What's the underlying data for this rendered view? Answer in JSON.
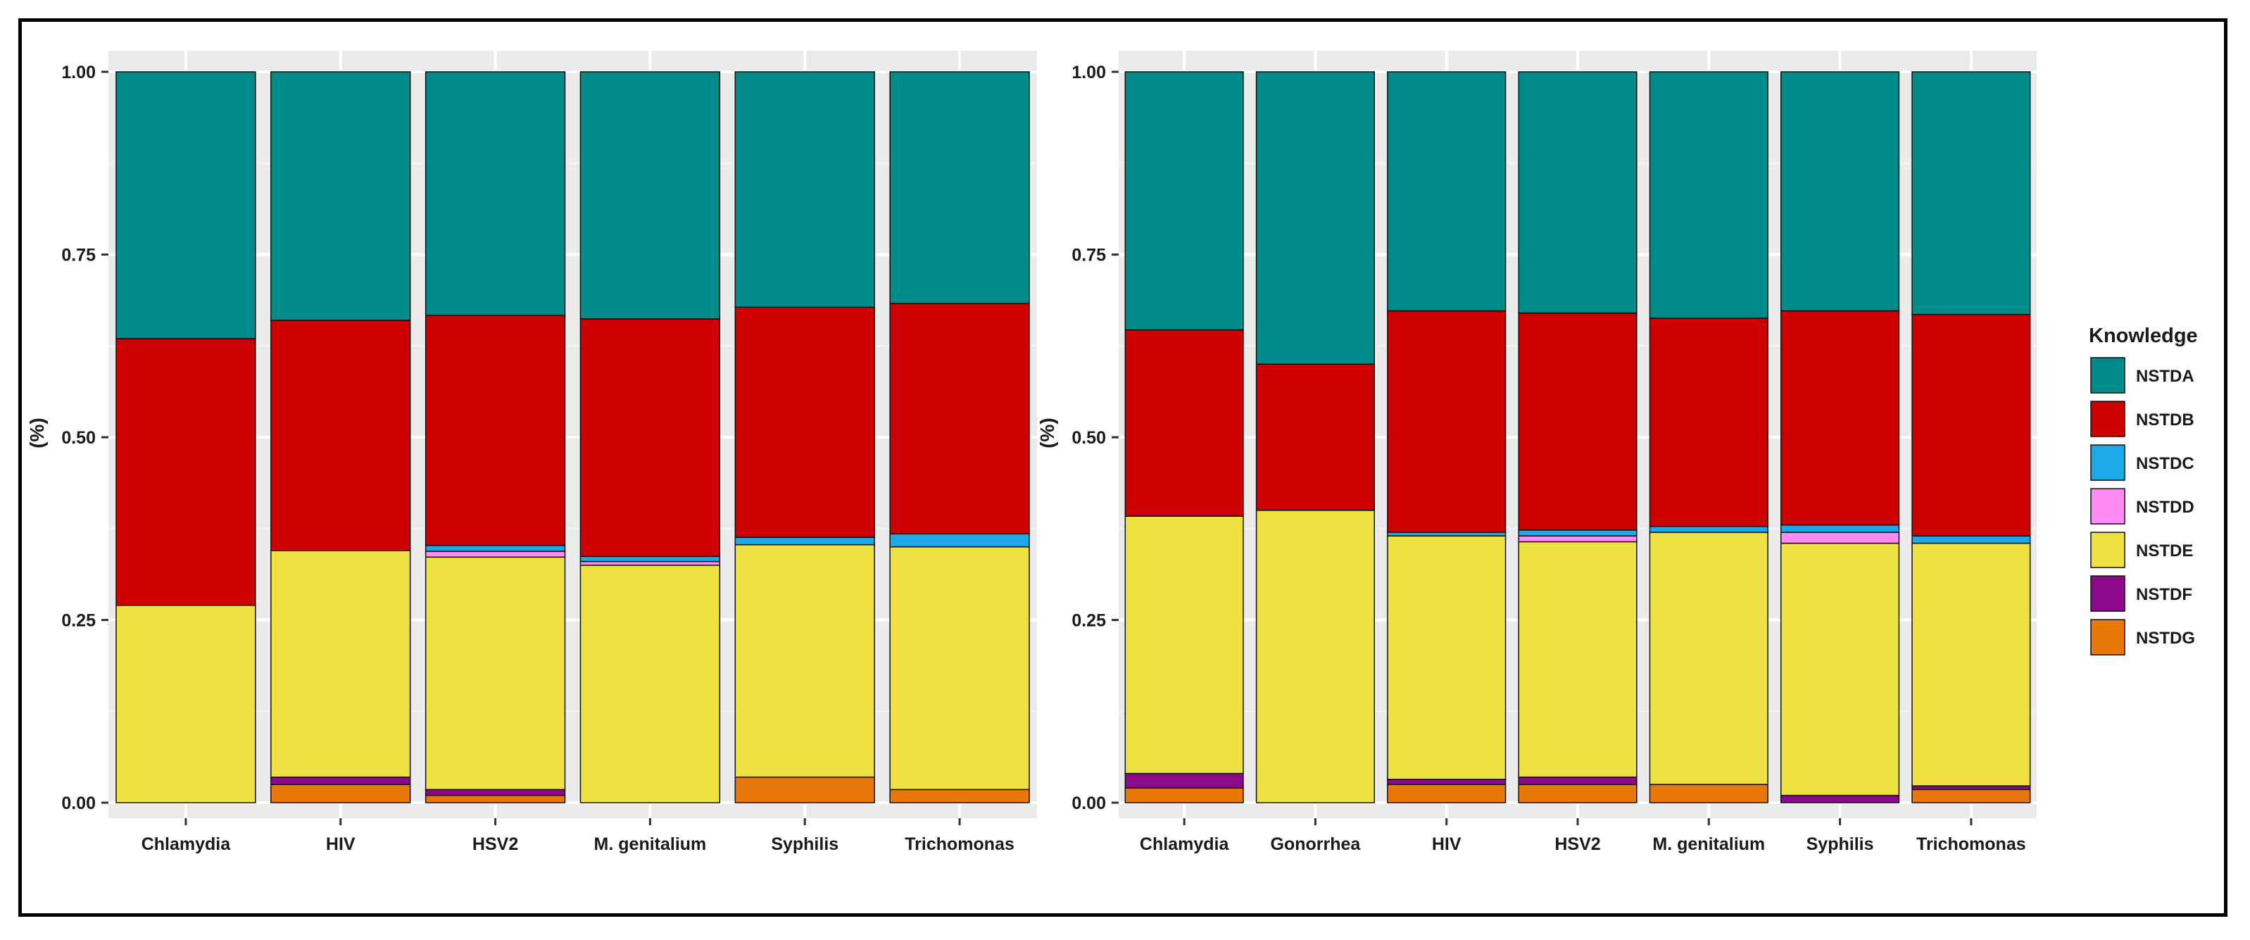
{
  "colors": {
    "panel_bg": "#ebebeb",
    "grid_major": "#ffffff",
    "grid_minor": "#f4f4f4",
    "bar_edge": "#111111",
    "text": "#1a1a1a"
  },
  "legend": {
    "title": "Knowledge",
    "placement": "right",
    "items": [
      {
        "label": "NSTDA",
        "color": "#008B8B"
      },
      {
        "label": "NSTDB",
        "color": "#CC0000"
      },
      {
        "label": "NSTDC",
        "color": "#1BA9E8"
      },
      {
        "label": "NSTDD",
        "color": "#FF8CF5"
      },
      {
        "label": "NSTDE",
        "color": "#EEE242"
      },
      {
        "label": "NSTDF",
        "color": "#8B0A8B"
      },
      {
        "label": "NSTDG",
        "color": "#E8780A"
      }
    ]
  },
  "chart_data": [
    {
      "type": "bar",
      "stacked": true,
      "ylabel": "(%)",
      "xlabel": "",
      "ylim": [
        0,
        1
      ],
      "yticks": [
        "0.00",
        "0.25",
        "0.50",
        "0.75",
        "1.00"
      ],
      "grid": true,
      "categories": [
        "Chlamydia",
        "HIV",
        "HSV2",
        "M. genitalium",
        "Syphilis",
        "Trichomonas"
      ],
      "series": [
        {
          "name": "NSTDG",
          "values": [
            0.0,
            0.025,
            0.01,
            0.0,
            0.035,
            0.018
          ]
        },
        {
          "name": "NSTDF",
          "values": [
            0.0,
            0.01,
            0.008,
            0.0,
            0.0,
            0.0
          ]
        },
        {
          "name": "NSTDE",
          "values": [
            0.27,
            0.31,
            0.318,
            0.325,
            0.318,
            0.332
          ]
        },
        {
          "name": "NSTDD",
          "values": [
            0.0,
            0.0,
            0.008,
            0.005,
            0.0,
            0.0
          ]
        },
        {
          "name": "NSTDC",
          "values": [
            0.0,
            0.0,
            0.008,
            0.007,
            0.01,
            0.018
          ]
        },
        {
          "name": "NSTDB",
          "values": [
            0.365,
            0.315,
            0.315,
            0.325,
            0.315,
            0.315
          ]
        },
        {
          "name": "NSTDA",
          "values": [
            0.365,
            0.34,
            0.333,
            0.338,
            0.322,
            0.317
          ]
        }
      ]
    },
    {
      "type": "bar",
      "stacked": true,
      "ylabel": "(%)",
      "xlabel": "",
      "ylim": [
        0,
        1
      ],
      "yticks": [
        "0.00",
        "0.25",
        "0.50",
        "0.75",
        "1.00"
      ],
      "grid": true,
      "categories": [
        "Chlamydia",
        "Gonorrhea",
        "HIV",
        "HSV2",
        "M. genitalium",
        "Syphilis",
        "Trichomonas"
      ],
      "series": [
        {
          "name": "NSTDG",
          "values": [
            0.02,
            0.0,
            0.025,
            0.025,
            0.025,
            0.0,
            0.018
          ]
        },
        {
          "name": "NSTDF",
          "values": [
            0.02,
            0.0,
            0.007,
            0.01,
            0.0,
            0.01,
            0.005
          ]
        },
        {
          "name": "NSTDE",
          "values": [
            0.352,
            0.4,
            0.333,
            0.322,
            0.345,
            0.345,
            0.332
          ]
        },
        {
          "name": "NSTDD",
          "values": [
            0.0,
            0.0,
            0.0,
            0.008,
            0.0,
            0.015,
            0.0
          ]
        },
        {
          "name": "NSTDC",
          "values": [
            0.0,
            0.0,
            0.005,
            0.008,
            0.008,
            0.01,
            0.01
          ]
        },
        {
          "name": "NSTDB",
          "values": [
            0.255,
            0.2,
            0.303,
            0.297,
            0.285,
            0.293,
            0.303
          ]
        },
        {
          "name": "NSTDA",
          "values": [
            0.353,
            0.4,
            0.327,
            0.33,
            0.337,
            0.327,
            0.332
          ]
        }
      ]
    }
  ]
}
